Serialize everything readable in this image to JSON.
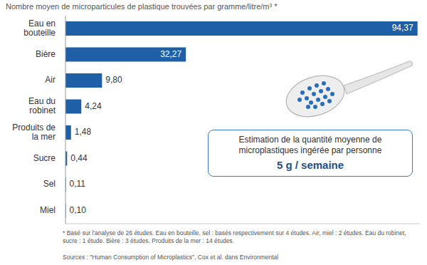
{
  "chart_data": {
    "type": "bar",
    "orientation": "horizontal",
    "subtitle": "Nombre moyen de microparticules de plastique trouvées par gramme/litre/m³ *",
    "categories": [
      "Eau en bouteille",
      "Bière",
      "Air",
      "Eau du robinet",
      "Produits de la mer",
      "Sucre",
      "Sel",
      "Miel"
    ],
    "values": [
      94.37,
      32.27,
      9.8,
      4.24,
      1.48,
      0.44,
      0.11,
      0.1
    ],
    "value_labels": [
      "94,37",
      "32,27",
      "9,80",
      "4,24",
      "1,48",
      "0,44",
      "0,11",
      "0,10"
    ],
    "color": "#1f5fa8",
    "xlim": [
      0,
      95
    ],
    "data_labels": true,
    "tick_labels": "y",
    "grid": false,
    "annotations": [
      "Estimation de la quantité moyenne de microplastiques ingérée par personne",
      "5 g / semaine"
    ],
    "footnote": "* Basé sur l'analyse de 26 études. Eau en bouteille, sel : basés respectivement sur 4 études. Air, miel : 2 études. Eau du robinet, sucre : 1 étude. Bière : 3 études. Produits de la mer : 14 études.",
    "source": "Sources : \"Human Consumption of Microplastics\", Cox et al. dans Environmental"
  }
}
